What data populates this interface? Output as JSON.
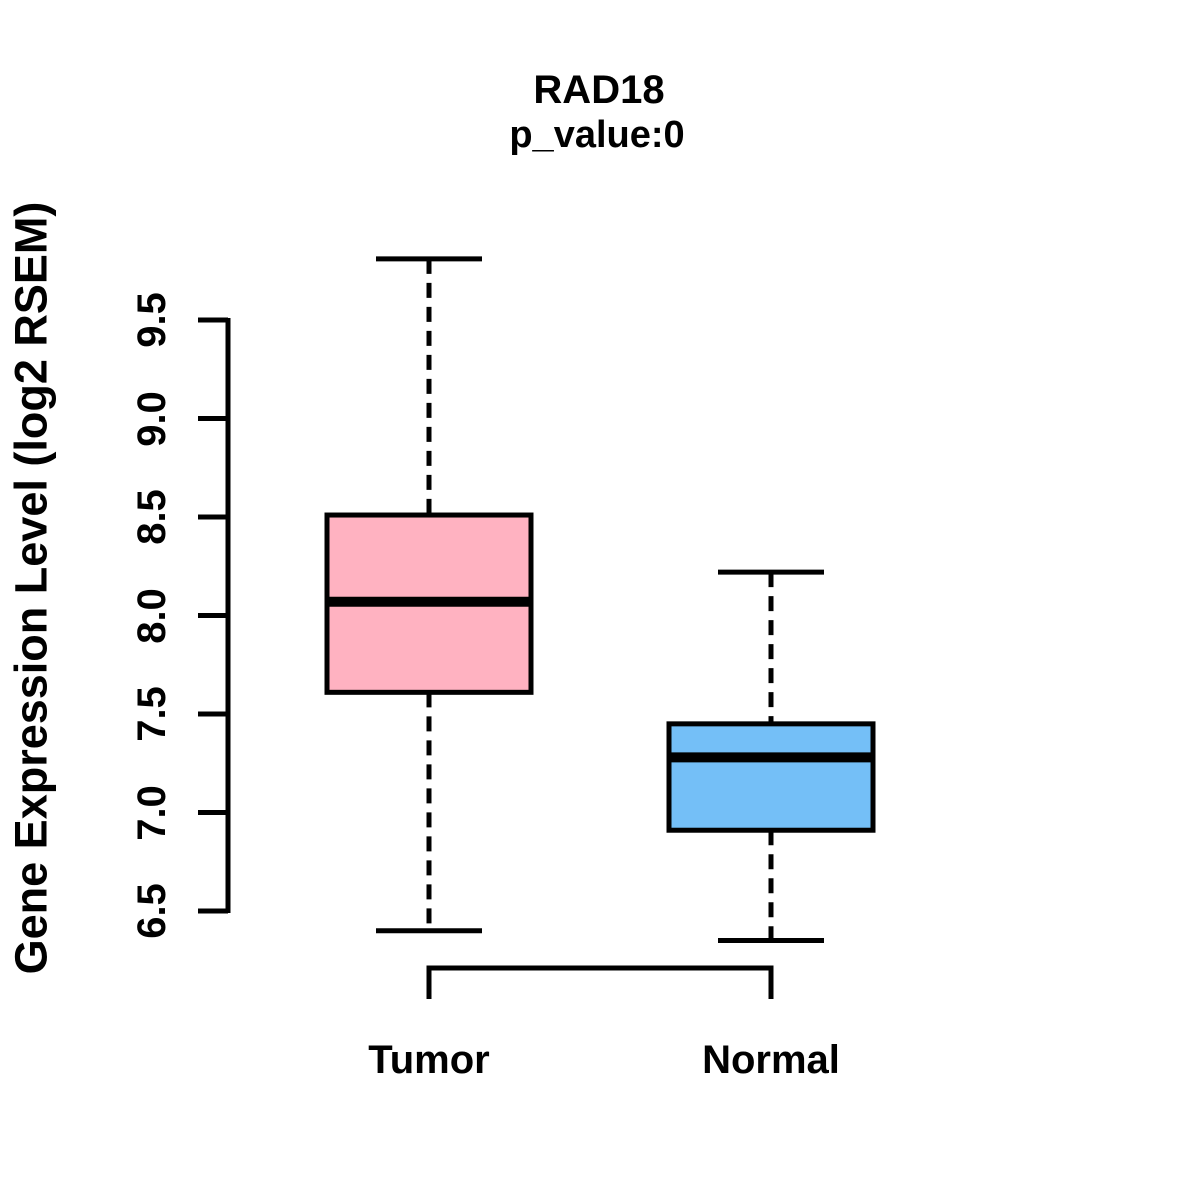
{
  "chart_data": {
    "type": "boxplot",
    "title": "RAD18",
    "subtitle": "p_value:0",
    "ylabel": "Gene Expression Level (log2 RSEM)",
    "xlabel": "",
    "ylim": [
      6.5,
      9.5
    ],
    "yticks": [
      "6.5",
      "7.0",
      "7.5",
      "8.0",
      "8.5",
      "9.0",
      "9.5"
    ],
    "grid": false,
    "legend": "none",
    "categories": [
      "Tumor",
      "Normal"
    ],
    "series": [
      {
        "name": "Tumor",
        "color": "#FFB2C1",
        "whisker_low": 6.4,
        "q1": 7.61,
        "median": 8.07,
        "q3": 8.51,
        "whisker_high": 9.81
      },
      {
        "name": "Normal",
        "color": "#74BFF7",
        "whisker_low": 6.35,
        "q1": 6.91,
        "median": 7.28,
        "q3": 7.45,
        "whisker_high": 8.22
      }
    ],
    "comparison_bracket": {
      "from": "Tumor",
      "to": "Normal"
    },
    "stroke_color": "#000000"
  }
}
